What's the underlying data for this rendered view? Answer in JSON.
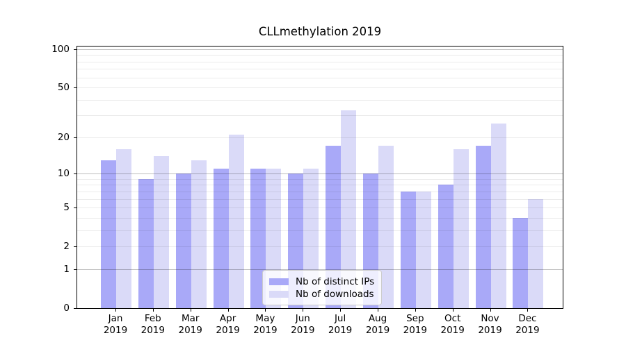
{
  "chart_data": {
    "type": "bar",
    "title": "CLLmethylation 2019",
    "categories": [
      "Jan",
      "Feb",
      "Mar",
      "Apr",
      "May",
      "Jun",
      "Jul",
      "Aug",
      "Sep",
      "Oct",
      "Nov",
      "Dec"
    ],
    "x_year": "2019",
    "series": [
      {
        "name": "Nb of distinct IPs",
        "color": "#a9a9f8",
        "values": [
          13,
          9,
          10,
          11,
          11,
          10,
          17,
          10,
          7,
          8,
          17,
          4
        ]
      },
      {
        "name": "Nb of downloads",
        "color": "#dadaf8",
        "values": [
          16,
          14,
          13,
          21,
          11,
          11,
          33,
          17,
          7,
          16,
          26,
          6
        ]
      }
    ],
    "scale": "log1p",
    "ylim": [
      0,
      105
    ],
    "y_ticks": [
      100,
      50,
      20,
      10,
      5,
      2,
      1,
      0
    ],
    "y_major_grid": [
      1,
      10,
      100
    ],
    "y_minor_grid": [
      2,
      3,
      4,
      5,
      6,
      7,
      8,
      9,
      20,
      30,
      40,
      50,
      60,
      70,
      80,
      90
    ],
    "grid": true,
    "legend_position": "lower center",
    "colors": {
      "major_grid": "rgba(0,0,0,0.26)",
      "minor_grid": "rgba(0,0,0,0.08)",
      "axis": "#000000",
      "text": "#000000",
      "background": "#ffffff"
    }
  }
}
